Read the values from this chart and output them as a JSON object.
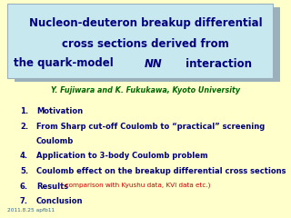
{
  "bg_color": "#ffffcc",
  "title_box_fill": "#c8e8f0",
  "title_box_shadow": "#9ab0bb",
  "title_box_edge": "#9ab0bb",
  "title_color": "#000080",
  "title_line1": "Nucleon-deuteron breakup differential",
  "title_line2": "cross sections derived from",
  "title_line3_pre": "the quark-model ",
  "title_line3_italic": "NN",
  "title_line3_post": " interaction",
  "title_fontsize": 8.5,
  "author_text": "Y. Fujiwara and K. Fukukawa, Kyoto University",
  "author_color": "#006600",
  "author_fontsize": 5.8,
  "items_color": "#000080",
  "items_fontsize": 6.0,
  "extra_color": "#cc0000",
  "extra_fontsize": 5.2,
  "items": [
    {
      "num": "1.",
      "text": "Motivation",
      "extra": null
    },
    {
      "num": "2.",
      "text": "From Sharp cut-off Coulomb to “practical” screening",
      "extra": null,
      "cont": "Coulomb"
    },
    {
      "num": "4.",
      "text": "Application to 3-body Coulomb problem",
      "extra": null
    },
    {
      "num": "5.",
      "text": "Coulomb effect on the breakup differential cross sections",
      "extra": null
    },
    {
      "num": "6.",
      "text": "Results",
      "extra": "  ( comparison with Kyushu data, KVI data etc.)"
    },
    {
      "num": "7.",
      "text": "Conclusion",
      "extra": null
    }
  ],
  "footnote": "2011.8.25 apfb11",
  "footnote_color": "#336688",
  "footnote_fontsize": 4.2
}
